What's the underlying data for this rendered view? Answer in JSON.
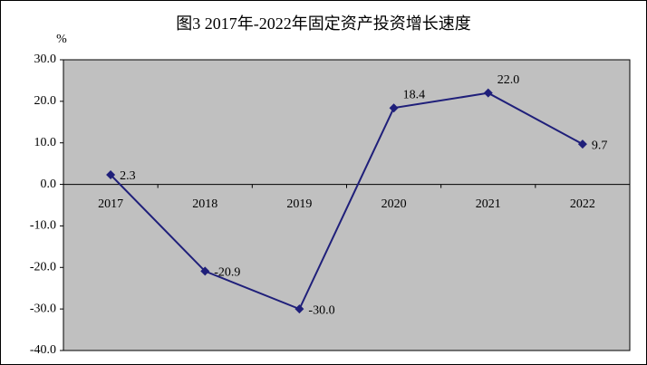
{
  "chart_data": {
    "type": "line",
    "title": "图3 2017年-2022年固定资产投资增长速度",
    "y_unit": "%",
    "categories": [
      "2017",
      "2018",
      "2019",
      "2020",
      "2021",
      "2022"
    ],
    "values": [
      2.3,
      -20.9,
      -30.0,
      18.4,
      22.0,
      9.7
    ],
    "value_labels": [
      "2.3",
      "-20.9",
      "-30.0",
      "18.4",
      "22.0",
      "9.7"
    ],
    "color": "#1f1f7a",
    "ylim": [
      -40,
      30
    ],
    "yticks": [
      {
        "value": 30,
        "label": "30.0"
      },
      {
        "value": 20,
        "label": "20.0"
      },
      {
        "value": 10,
        "label": "10.0"
      },
      {
        "value": 0,
        "label": "0.0"
      },
      {
        "value": -10,
        "label": "-10.0"
      },
      {
        "value": -20,
        "label": "-20.0"
      },
      {
        "value": -30,
        "label": "-30.0"
      },
      {
        "value": -40,
        "label": "-40.0"
      }
    ],
    "grid": false
  }
}
